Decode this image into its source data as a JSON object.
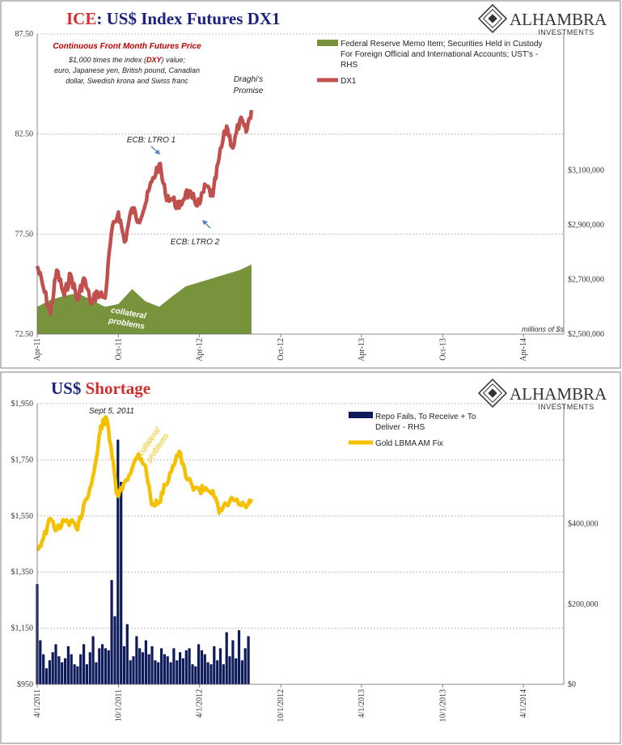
{
  "colors": {
    "title_blue": "#1a237e",
    "title_red": "#d32f2f",
    "dx_red": "#c0504d",
    "fed_green": "#77933c",
    "gold_yellow": "#f5c000",
    "repo_navy": "#0d1b5a",
    "note_red": "#c00000",
    "grid": "#b0b0b0"
  },
  "brand": {
    "name": "ALHAMBRA",
    "sub": "INVESTMENTS",
    "logo_icon": "alhambra-diamond-icon"
  },
  "top": {
    "title_prefix": "ICE",
    "title_rest": ": US$ Index Futures DX1",
    "note_head": "Continuous  Front Month Futures Price",
    "note_line1_a": "$1,000 times the index (",
    "note_line1_b": "DXY",
    "note_line1_c": ") value;",
    "note_line2": "euro, Japanese yen, British pound, Canadian",
    "note_line3": "dollar, Swedish krona and Swiss franc",
    "legend_fed_l1": "Federal Reserve Memo Item; Securities Held in Custody",
    "legend_fed_l2": "For Foreign Official and International Accounts; UST's -",
    "legend_fed_l3": "RHS",
    "legend_dx": "DX1",
    "ann_draghi_1": "Draghi's",
    "ann_draghi_2": "Promise",
    "ann_ltro1": "ECB: LTRO 1",
    "ann_ltro2": "ECB: LTRO 2",
    "ann_collat_1": "collateral",
    "ann_collat_2": "problems",
    "units_note": "millions of $s",
    "left_ticks": [
      "72.50",
      "77.50",
      "82.50",
      "87.50"
    ],
    "right_ticks": [
      "$2,500,000",
      "$2,700,000",
      "$2,900,000",
      "$3,100,000"
    ],
    "x_ticks": [
      "Apr-11",
      "Oct-11",
      "Apr-12",
      "Oct-12",
      "Apr-13",
      "Oct-13",
      "Apr-14"
    ]
  },
  "bottom": {
    "title_prefix": "US$",
    "title_rest": " Shortage",
    "ann_sept": "Sept 5, 2011",
    "ann_collat_1": "collateral",
    "ann_collat_2": "problems",
    "legend_repo_l1": "Repo Fails, To Receive + To",
    "legend_repo_l2": "Deliver - RHS",
    "legend_gold": "Gold LBMA AM Fix",
    "left_ticks": [
      "$950",
      "$1,150",
      "$1,350",
      "$1,550",
      "$1,750",
      "$1,950"
    ],
    "right_ticks": [
      "$0",
      "$200,000",
      "$400,000"
    ],
    "x_ticks": [
      "4/1/2011",
      "10/1/2011",
      "4/1/2012",
      "10/1/2012",
      "4/1/2013",
      "10/1/2013",
      "4/1/2014"
    ]
  },
  "chart_data": [
    {
      "type": "line",
      "title": "ICE: US$ Index Futures DX1",
      "x_range": [
        "2011-04",
        "2014-07"
      ],
      "y_left_range": [
        72.5,
        87.5
      ],
      "y_right_range": [
        2500000,
        3600000
      ],
      "series": [
        {
          "name": "DX1",
          "axis": "left",
          "x": [
            "2011-04-01",
            "2011-04-15",
            "2011-05-01",
            "2011-05-15",
            "2011-06-01",
            "2011-06-15",
            "2011-07-01",
            "2011-07-15",
            "2011-08-01",
            "2011-08-15",
            "2011-09-01",
            "2011-09-15",
            "2011-10-01",
            "2011-10-15",
            "2011-11-01",
            "2011-11-15",
            "2011-12-01",
            "2011-12-15",
            "2012-01-01",
            "2012-01-15",
            "2012-02-01",
            "2012-02-15",
            "2012-03-01",
            "2012-03-15",
            "2012-04-01",
            "2012-04-15",
            "2012-05-01",
            "2012-05-15",
            "2012-06-01",
            "2012-06-15",
            "2012-07-01",
            "2012-07-15",
            "2012-07-27"
          ],
          "values": [
            75.9,
            74.8,
            73.5,
            75.7,
            74.4,
            75.5,
            74.2,
            75.3,
            74.0,
            74.6,
            74.3,
            77.5,
            78.6,
            77.1,
            78.8,
            78.2,
            79.0,
            80.1,
            81.0,
            79.5,
            79.2,
            78.8,
            79.6,
            79.3,
            79.0,
            79.9,
            79.4,
            81.3,
            82.9,
            81.8,
            83.2,
            82.6,
            83.7
          ]
        },
        {
          "name": "Federal Reserve Memo Item; Securities Held in Custody For Foreign Official and International Accounts; UST's - RHS",
          "axis": "right",
          "type": "area",
          "x": [
            "2011-04-01",
            "2011-05-01",
            "2011-06-01",
            "2011-07-01",
            "2011-08-01",
            "2011-09-01",
            "2011-10-01",
            "2011-11-01",
            "2011-12-01",
            "2012-01-01",
            "2012-02-01",
            "2012-03-01",
            "2012-04-01",
            "2012-05-01",
            "2012-06-01",
            "2012-07-01",
            "2012-07-27"
          ],
          "values": [
            2600000,
            2625000,
            2640000,
            2650000,
            2625000,
            2600000,
            2610000,
            2665000,
            2620000,
            2600000,
            2640000,
            2675000,
            2690000,
            2705000,
            2720000,
            2735000,
            2755000
          ]
        }
      ]
    },
    {
      "type": "line",
      "title": "US$ Shortage",
      "x_range": [
        "2011-04-01",
        "2014-07-01"
      ],
      "y_left_range": [
        950,
        1950
      ],
      "y_right_range": [
        0,
        700000
      ],
      "series": [
        {
          "name": "Gold LBMA AM Fix",
          "axis": "left",
          "x": [
            "2011-04-01",
            "2011-04-15",
            "2011-05-01",
            "2011-05-15",
            "2011-06-01",
            "2011-06-15",
            "2011-07-01",
            "2011-07-15",
            "2011-08-01",
            "2011-08-15",
            "2011-08-22",
            "2011-09-05",
            "2011-09-15",
            "2011-09-26",
            "2011-10-01",
            "2011-10-15",
            "2011-11-01",
            "2011-11-15",
            "2011-12-01",
            "2011-12-15",
            "2012-01-01",
            "2012-01-15",
            "2012-02-01",
            "2012-02-15",
            "2012-03-01",
            "2012-03-15",
            "2012-04-01",
            "2012-04-15",
            "2012-05-01",
            "2012-05-15",
            "2012-06-01",
            "2012-06-15",
            "2012-07-01",
            "2012-07-15",
            "2012-07-27"
          ],
          "values": [
            1430,
            1470,
            1540,
            1500,
            1530,
            1530,
            1500,
            1590,
            1660,
            1780,
            1870,
            1895,
            1790,
            1640,
            1620,
            1670,
            1720,
            1770,
            1730,
            1590,
            1600,
            1660,
            1730,
            1780,
            1690,
            1660,
            1640,
            1650,
            1640,
            1560,
            1590,
            1610,
            1590,
            1580,
            1610
          ]
        },
        {
          "name": "Repo Fails, To Receive + To Deliver - RHS",
          "axis": "right",
          "type": "bar",
          "x": [
            "2011-04-01",
            "2011-04-08",
            "2011-04-15",
            "2011-04-22",
            "2011-04-29",
            "2011-05-06",
            "2011-05-13",
            "2011-05-20",
            "2011-05-27",
            "2011-06-03",
            "2011-06-10",
            "2011-06-17",
            "2011-06-24",
            "2011-07-01",
            "2011-07-08",
            "2011-07-15",
            "2011-07-22",
            "2011-07-29",
            "2011-08-05",
            "2011-08-12",
            "2011-08-19",
            "2011-08-26",
            "2011-09-02",
            "2011-09-09",
            "2011-09-16",
            "2011-09-23",
            "2011-09-30",
            "2011-10-07",
            "2011-10-14",
            "2011-10-21",
            "2011-10-28",
            "2011-11-04",
            "2011-11-11",
            "2011-11-18",
            "2011-11-25",
            "2011-12-02",
            "2011-12-09",
            "2011-12-16",
            "2011-12-23",
            "2011-12-30",
            "2012-01-06",
            "2012-01-13",
            "2012-01-20",
            "2012-01-27",
            "2012-02-03",
            "2012-02-10",
            "2012-02-17",
            "2012-02-24",
            "2012-03-02",
            "2012-03-09",
            "2012-03-16",
            "2012-03-23",
            "2012-03-30",
            "2012-04-06",
            "2012-04-13",
            "2012-04-20",
            "2012-04-27",
            "2012-05-04",
            "2012-05-11",
            "2012-05-18",
            "2012-05-25",
            "2012-06-01",
            "2012-06-08",
            "2012-06-15",
            "2012-06-22",
            "2012-06-29",
            "2012-07-06",
            "2012-07-13",
            "2012-07-20"
          ],
          "values": [
            250000,
            110000,
            75000,
            40000,
            60000,
            80000,
            100000,
            70000,
            55000,
            65000,
            95000,
            75000,
            50000,
            45000,
            75000,
            100000,
            50000,
            80000,
            120000,
            55000,
            90000,
            100000,
            90000,
            85000,
            260000,
            170000,
            610000,
            505000,
            95000,
            150000,
            60000,
            70000,
            120000,
            90000,
            80000,
            110000,
            75000,
            95000,
            60000,
            55000,
            90000,
            75000,
            70000,
            55000,
            90000,
            60000,
            80000,
            65000,
            85000,
            90000,
            50000,
            45000,
            100000,
            85000,
            75000,
            55000,
            50000,
            95000,
            60000,
            90000,
            50000,
            130000,
            70000,
            110000,
            65000,
            135000,
            60000,
            90000,
            120000
          ]
        }
      ]
    }
  ]
}
